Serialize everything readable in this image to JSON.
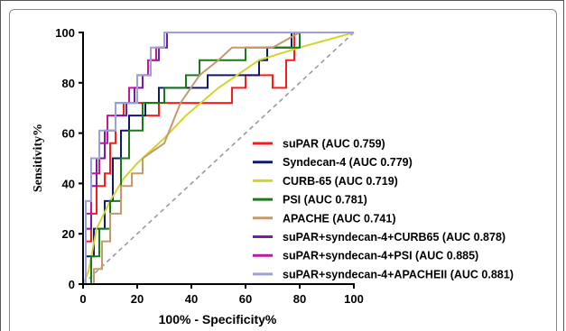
{
  "chart_data": {
    "type": "line",
    "xlabel": "100% - Specificity%",
    "ylabel": "Sensitivity%",
    "xlim": [
      0,
      100
    ],
    "ylim": [
      0,
      100
    ],
    "x_ticks": [
      "0",
      "20",
      "40",
      "60",
      "80",
      "100"
    ],
    "y_ticks": [
      "0",
      "20",
      "40",
      "60",
      "80",
      "100"
    ],
    "grid": false,
    "legend_position": "center-right",
    "reference_line": {
      "style": "dashed",
      "color": "#9a9a9a",
      "x": [
        0,
        100
      ],
      "y": [
        0,
        100
      ]
    },
    "series": [
      {
        "name": "suPAR (AUC 0.759)",
        "color": "#ff1a1a",
        "x": [
          0,
          1,
          1,
          3,
          3,
          5,
          5,
          8,
          8,
          10,
          10,
          12,
          12,
          15,
          15,
          22,
          22,
          28,
          28,
          55,
          55,
          60,
          60,
          70,
          70,
          75,
          75,
          78,
          78,
          100
        ],
        "y": [
          0,
          0,
          17,
          17,
          28,
          28,
          39,
          39,
          44,
          44,
          56,
          56,
          67,
          67,
          72,
          72,
          67,
          67,
          72,
          72,
          78,
          78,
          83,
          83,
          78,
          78,
          89,
          89,
          100,
          100
        ]
      },
      {
        "name": "Syndecan-4 (AUC 0.779)",
        "color": "#0d1a6e",
        "x": [
          0,
          1,
          1,
          4,
          4,
          8,
          8,
          11,
          11,
          14,
          14,
          17,
          17,
          23,
          23,
          28,
          28,
          46,
          46,
          65,
          65,
          68,
          68,
          77,
          77,
          100
        ],
        "y": [
          0,
          0,
          11,
          11,
          22,
          22,
          33,
          33,
          50,
          50,
          61,
          61,
          67,
          67,
          72,
          72,
          78,
          78,
          83,
          83,
          89,
          89,
          94,
          94,
          100,
          100
        ]
      },
      {
        "name": "CURB-65 (AUC 0.719)",
        "color": "#d4d428",
        "x": [
          0,
          2,
          5,
          10,
          15,
          20,
          25,
          30,
          38,
          50,
          65,
          80,
          100
        ],
        "y": [
          0,
          5,
          22,
          33,
          42,
          48,
          53,
          58,
          67,
          78,
          89,
          94,
          100
        ]
      },
      {
        "name": "PSI (AUC 0.781)",
        "color": "#1a7a1a",
        "x": [
          0,
          3,
          3,
          6,
          6,
          10,
          10,
          14,
          14,
          17,
          17,
          22,
          22,
          30,
          30,
          38,
          38,
          43,
          43,
          60,
          60,
          80,
          80,
          100
        ],
        "y": [
          0,
          0,
          11,
          11,
          22,
          22,
          33,
          33,
          50,
          50,
          61,
          61,
          72,
          72,
          78,
          78,
          83,
          83,
          89,
          89,
          94,
          94,
          100,
          100
        ]
      },
      {
        "name": "APACHE (AUC 0.741)",
        "color": "#c49a6c",
        "x": [
          0,
          4,
          4,
          7,
          7,
          10,
          10,
          14,
          14,
          18,
          18,
          22,
          22,
          30,
          36,
          43,
          50,
          55,
          62,
          70,
          80,
          88,
          100
        ],
        "y": [
          0,
          0,
          6,
          6,
          17,
          17,
          28,
          28,
          39,
          39,
          44,
          44,
          50,
          56,
          72,
          83,
          89,
          94,
          94,
          94,
          100,
          100,
          100
        ]
      },
      {
        "name": "suPAR+syndecan-4+CURB65 (AUC 0.878)",
        "color": "#7a1aa6",
        "x": [
          0,
          1,
          1,
          3,
          3,
          5,
          5,
          8,
          8,
          12,
          12,
          16,
          16,
          19,
          19,
          22,
          22,
          25,
          25,
          28,
          28,
          31,
          31,
          100
        ],
        "y": [
          0,
          0,
          22,
          22,
          39,
          39,
          50,
          50,
          61,
          61,
          67,
          67,
          72,
          72,
          78,
          78,
          83,
          83,
          89,
          89,
          94,
          94,
          100,
          100
        ]
      },
      {
        "name": "suPAR+syndecan-4+PSI (AUC 0.885)",
        "color": "#c01a9a",
        "x": [
          0,
          1,
          1,
          3,
          3,
          6,
          6,
          9,
          9,
          12,
          12,
          17,
          17,
          20,
          20,
          24,
          24,
          27,
          27,
          30,
          30,
          100
        ],
        "y": [
          0,
          0,
          28,
          28,
          44,
          44,
          56,
          56,
          67,
          67,
          72,
          72,
          78,
          78,
          83,
          83,
          89,
          89,
          94,
          94,
          100,
          100
        ]
      },
      {
        "name": "suPAR+syndecan-4+APACHEII (AUC 0.881)",
        "color": "#9aa0dc",
        "x": [
          0,
          1,
          1,
          3,
          3,
          6,
          6,
          12,
          12,
          20,
          20,
          25,
          25,
          30,
          30,
          50,
          50,
          100
        ],
        "y": [
          0,
          0,
          33,
          33,
          50,
          50,
          61,
          61,
          72,
          72,
          83,
          83,
          94,
          94,
          100,
          100,
          100,
          100
        ]
      }
    ]
  }
}
